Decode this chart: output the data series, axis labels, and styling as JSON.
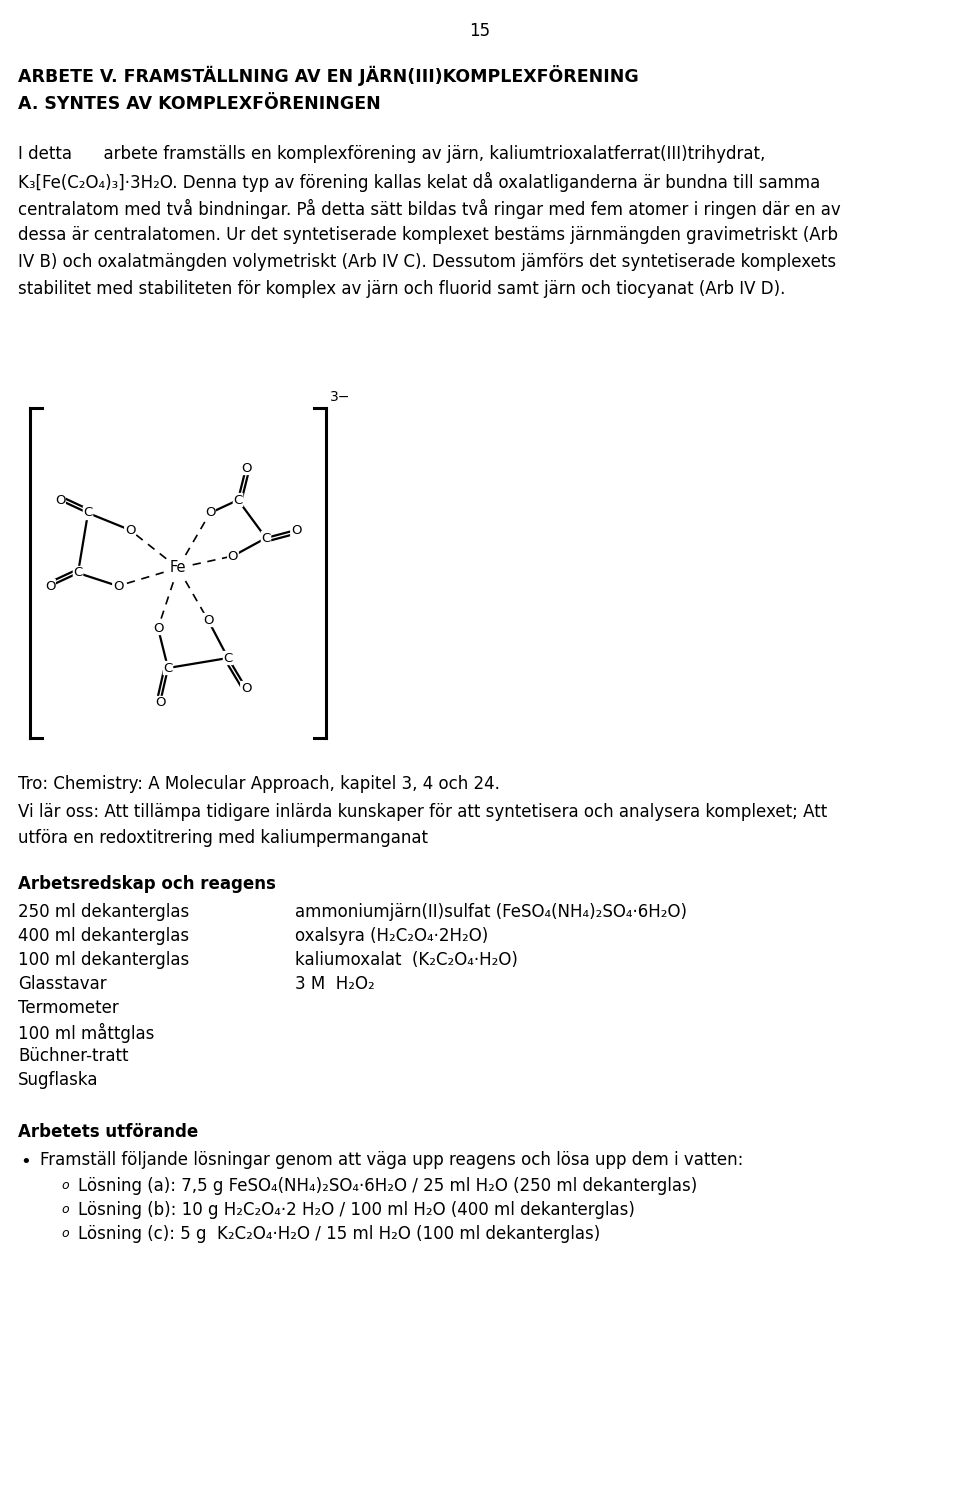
{
  "page_number": "15",
  "title1": "ARBETE V. FRAMSTÄLLNING AV EN JÄRN(III)KOMPLEXFÖRENING",
  "title2": "A. SYNTES AV KOMPLEXFÖRENINGEN",
  "tro_ref": "Tro: Chemistry: A Molecular Approach, kapitel 3, 4 och 24.",
  "vi_lar1": "Vi lär oss: Att tillämpa tidigare inlärda kunskaper för att syntetisera och analysera komplexet; Att",
  "vi_lar2": "utföra en redoxtitrering med kaliumpermanganat",
  "arbetsredskap_header": "Arbetsredskap och reagens",
  "reagents": [
    [
      "250 ml dekanterglas",
      "ammoniumjärn(II)sulfat (FeSO₄(NH₄)₂SO₄·6H₂O)"
    ],
    [
      "400 ml dekanterglas",
      "oxalsyra (H₂C₂O₄·2H₂O)"
    ],
    [
      "100 ml dekanterglas",
      "kaliumoxalat  (K₂C₂O₄·H₂O)"
    ],
    [
      "Glasstavar",
      "3 M  H₂O₂"
    ],
    [
      "Termometer",
      ""
    ],
    [
      "100 ml måttglas",
      ""
    ],
    [
      "Büchner-tratt",
      ""
    ],
    [
      "Sugflaska",
      ""
    ]
  ],
  "arbetets_header": "Arbetets utförande",
  "bullet1": "Framställ följande lösningar genom att väga upp reagens och lösa upp dem i vatten:",
  "sub_bullets": [
    "Lösning (a): 7,5 g FeSO₄(NH₄)₂SO₄·6H₂O / 25 ml H₂O (250 ml dekanterglas)",
    "Lösning (b): 10 g H₂C₂O₄·2 H₂O / 100 ml H₂O (400 ml dekanterglas)",
    "Lösning (c): 5 g  K₂C₂O₄·H₂O / 15 ml H₂O (100 ml dekanterglas)"
  ],
  "para_lines": [
    "I detta      arbete framställs en komplexförening av järn, kaliumtrioxalatferrat(III)trihydrat,",
    "K₃[Fe(C₂O₄)₃]·3H₂O. Denna typ av förening kallas kelat då oxalatliganderna är bundna till samma",
    "centralatom med två bindningar. På detta sätt bildas två ringar med fem atomer i ringen där en av",
    "dessa är centralatomen. Ur det syntetiserade komplexet bestäms järnmängden gravimetriskt (Arb",
    "IV B) och oxalatmängden volymetriskt (Arb IV C). Dessutom jämförs det syntetiserade komplexets",
    "stabilitet med stabiliteten för komplex av järn och fluorid samt järn och tiocyanat (Arb IV D)."
  ],
  "background_color": "#ffffff"
}
